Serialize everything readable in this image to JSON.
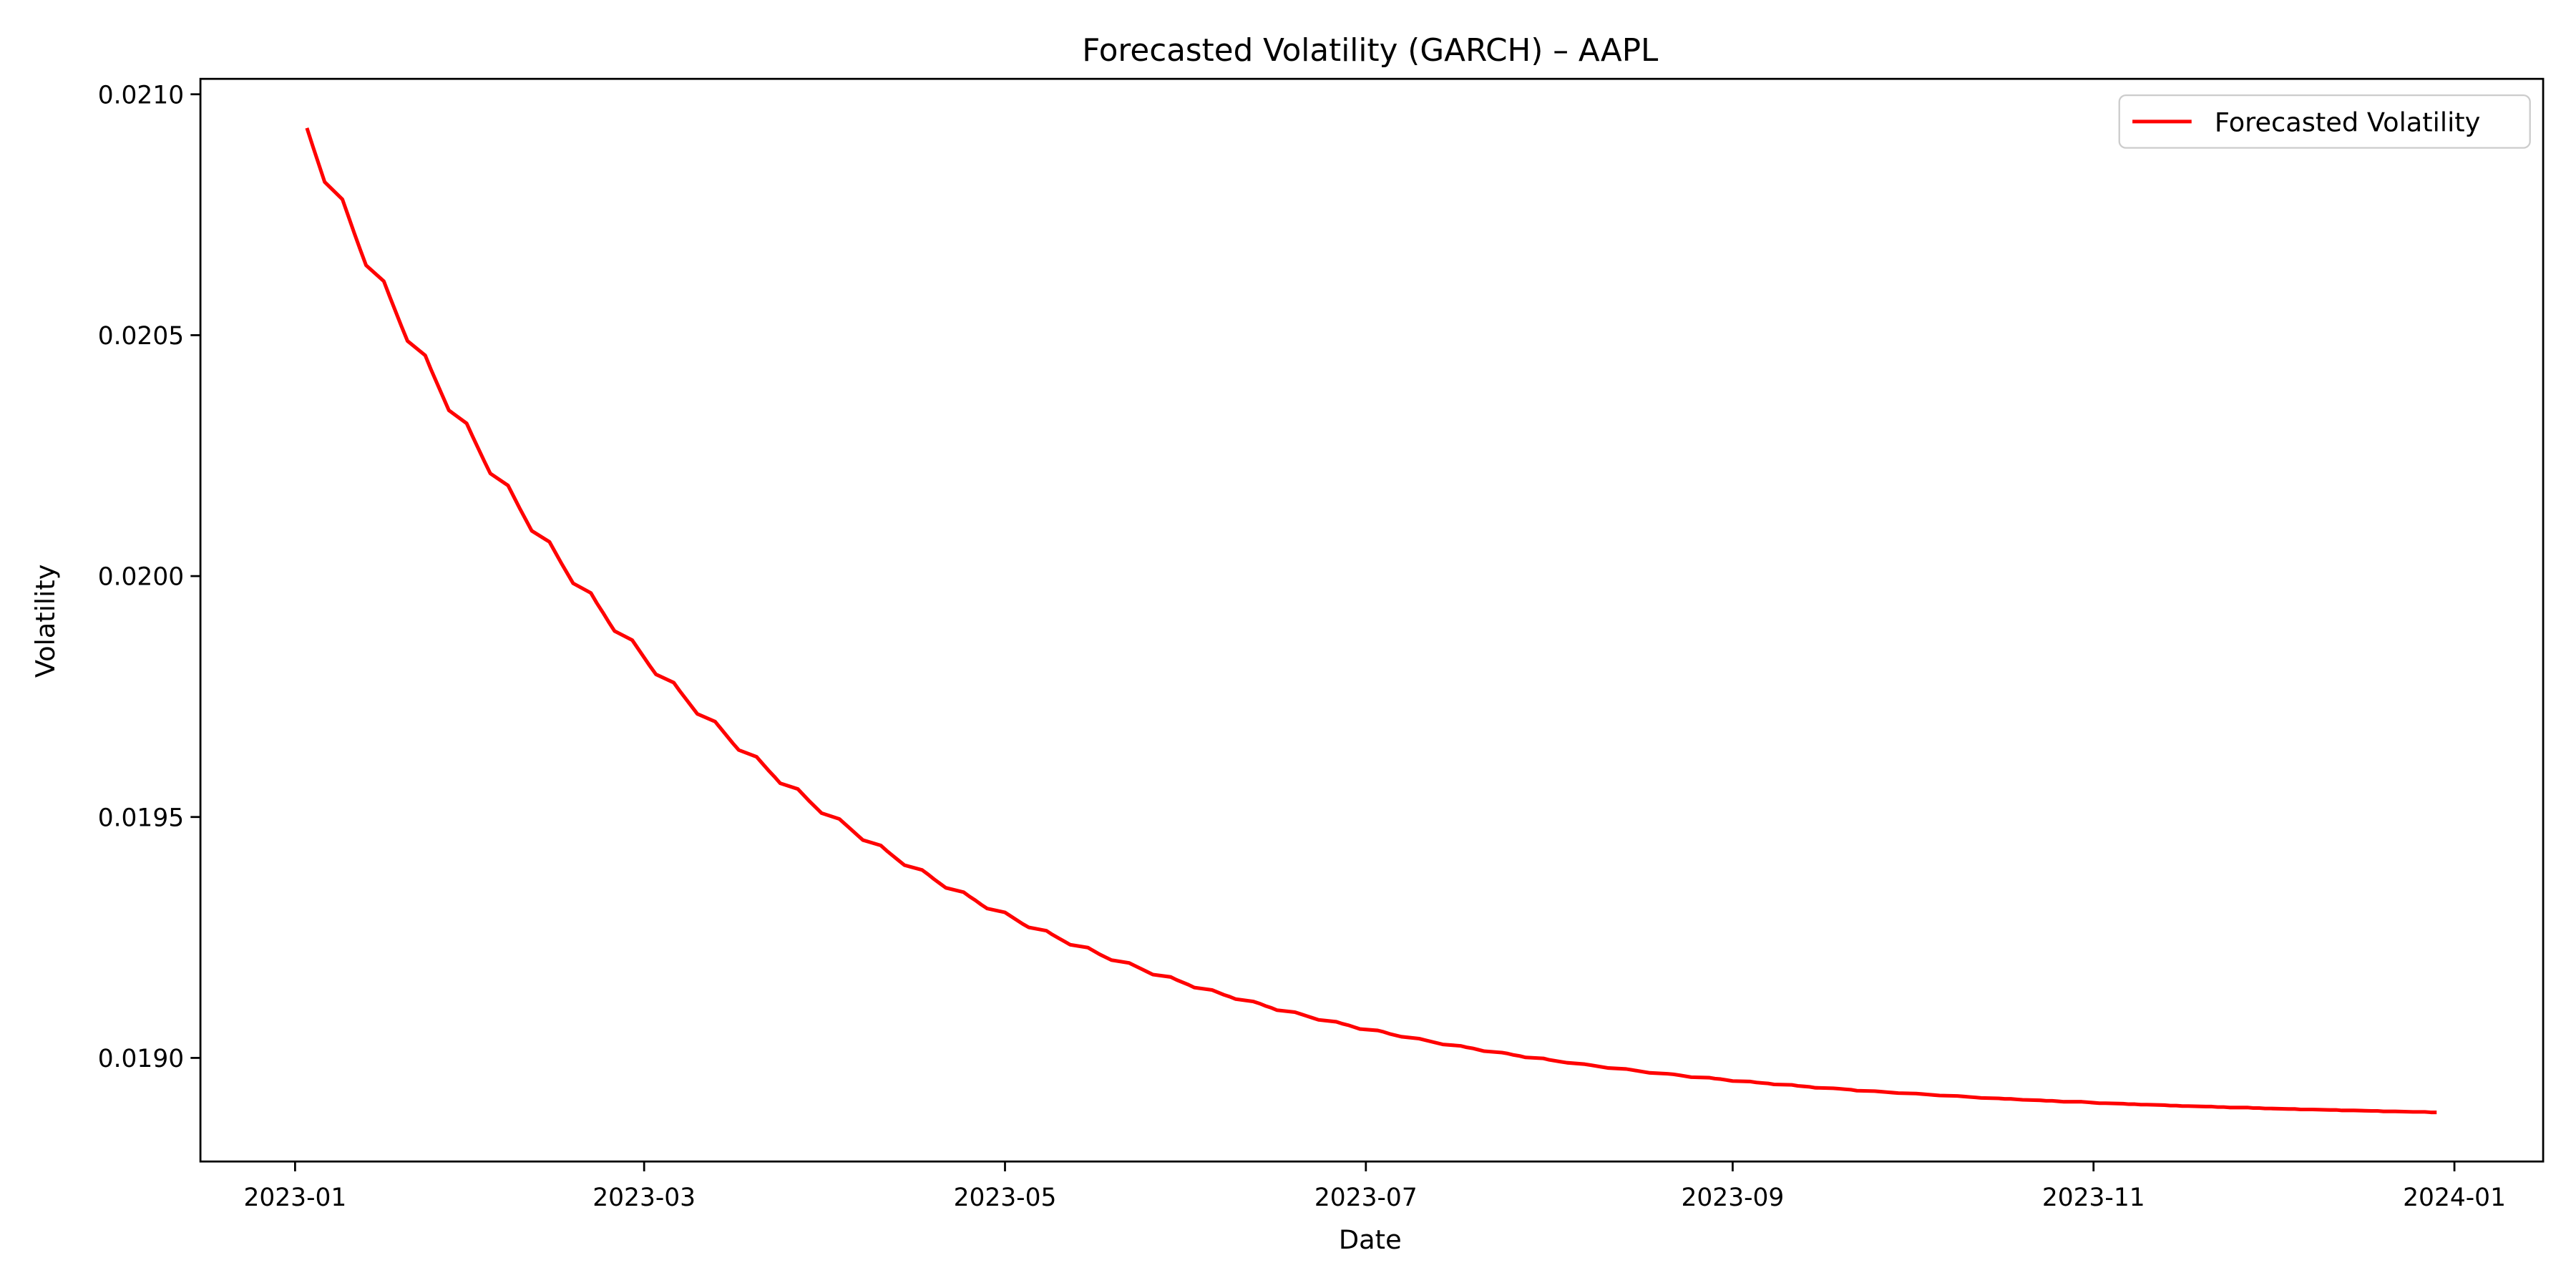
{
  "chart_data": {
    "type": "line",
    "title": "Forecasted Volatility (GARCH) – AAPL",
    "x_label": "Date",
    "y_label": "Volatility",
    "legend": "upper right",
    "grid": false,
    "x": [
      "2023-01-03",
      "2023-01-04",
      "2023-01-05",
      "2023-01-06",
      "2023-01-09",
      "2023-01-10",
      "2023-01-11",
      "2023-01-12",
      "2023-01-13",
      "2023-01-16",
      "2023-01-17",
      "2023-01-18",
      "2023-01-19",
      "2023-01-20",
      "2023-01-23",
      "2023-01-24",
      "2023-01-25",
      "2023-01-26",
      "2023-01-27",
      "2023-01-30",
      "2023-01-31",
      "2023-02-01",
      "2023-02-02",
      "2023-02-03",
      "2023-02-06",
      "2023-02-07",
      "2023-02-08",
      "2023-02-09",
      "2023-02-10",
      "2023-02-13",
      "2023-02-14",
      "2023-02-15",
      "2023-02-16",
      "2023-02-17",
      "2023-02-20",
      "2023-02-21",
      "2023-02-22",
      "2023-02-23",
      "2023-02-24",
      "2023-02-27",
      "2023-02-28",
      "2023-03-01",
      "2023-03-02",
      "2023-03-03",
      "2023-03-06",
      "2023-03-07",
      "2023-03-08",
      "2023-03-09",
      "2023-03-10",
      "2023-03-13",
      "2023-03-14",
      "2023-03-15",
      "2023-03-16",
      "2023-03-17",
      "2023-03-20",
      "2023-03-21",
      "2023-03-22",
      "2023-03-23",
      "2023-03-24",
      "2023-03-27",
      "2023-03-28",
      "2023-03-29",
      "2023-03-30",
      "2023-03-31",
      "2023-04-03",
      "2023-04-04",
      "2023-04-05",
      "2023-04-06",
      "2023-04-07",
      "2023-04-10",
      "2023-04-11",
      "2023-04-12",
      "2023-04-13",
      "2023-04-14",
      "2023-04-17",
      "2023-04-18",
      "2023-04-19",
      "2023-04-20",
      "2023-04-21",
      "2023-04-24",
      "2023-04-25",
      "2023-04-26",
      "2023-04-27",
      "2023-04-28",
      "2023-05-01",
      "2023-05-02",
      "2023-05-03",
      "2023-05-04",
      "2023-05-05",
      "2023-05-08",
      "2023-05-09",
      "2023-05-10",
      "2023-05-11",
      "2023-05-12",
      "2023-05-15",
      "2023-05-16",
      "2023-05-17",
      "2023-05-18",
      "2023-05-19",
      "2023-05-22",
      "2023-05-23",
      "2023-05-24",
      "2023-05-25",
      "2023-05-26",
      "2023-05-29",
      "2023-05-30",
      "2023-05-31",
      "2023-06-01",
      "2023-06-02",
      "2023-06-05",
      "2023-06-06",
      "2023-06-07",
      "2023-06-08",
      "2023-06-09",
      "2023-06-12",
      "2023-06-13",
      "2023-06-14",
      "2023-06-15",
      "2023-06-16",
      "2023-06-19",
      "2023-06-20",
      "2023-06-21",
      "2023-06-22",
      "2023-06-23",
      "2023-06-26",
      "2023-06-27",
      "2023-06-28",
      "2023-06-29",
      "2023-06-30",
      "2023-07-03",
      "2023-07-04",
      "2023-07-05",
      "2023-07-06",
      "2023-07-07",
      "2023-07-10",
      "2023-07-11",
      "2023-07-12",
      "2023-07-13",
      "2023-07-14",
      "2023-07-17",
      "2023-07-18",
      "2023-07-19",
      "2023-07-20",
      "2023-07-21",
      "2023-07-24",
      "2023-07-25",
      "2023-07-26",
      "2023-07-27",
      "2023-07-28",
      "2023-07-31",
      "2023-08-01",
      "2023-08-02",
      "2023-08-03",
      "2023-08-04",
      "2023-08-07",
      "2023-08-08",
      "2023-08-09",
      "2023-08-10",
      "2023-08-11",
      "2023-08-14",
      "2023-08-15",
      "2023-08-16",
      "2023-08-17",
      "2023-08-18",
      "2023-08-21",
      "2023-08-22",
      "2023-08-23",
      "2023-08-24",
      "2023-08-25",
      "2023-08-28",
      "2023-08-29",
      "2023-08-30",
      "2023-08-31",
      "2023-09-01",
      "2023-09-04",
      "2023-09-05",
      "2023-09-06",
      "2023-09-07",
      "2023-09-08",
      "2023-09-11",
      "2023-09-12",
      "2023-09-13",
      "2023-09-14",
      "2023-09-15",
      "2023-09-18",
      "2023-09-19",
      "2023-09-20",
      "2023-09-21",
      "2023-09-22",
      "2023-09-25",
      "2023-09-26",
      "2023-09-27",
      "2023-09-28",
      "2023-09-29",
      "2023-10-02",
      "2023-10-03",
      "2023-10-04",
      "2023-10-05",
      "2023-10-06",
      "2023-10-09",
      "2023-10-10",
      "2023-10-11",
      "2023-10-12",
      "2023-10-13",
      "2023-10-16",
      "2023-10-17",
      "2023-10-18",
      "2023-10-19",
      "2023-10-20",
      "2023-10-23",
      "2023-10-24",
      "2023-10-25",
      "2023-10-26",
      "2023-10-27",
      "2023-10-30",
      "2023-10-31",
      "2023-11-01",
      "2023-11-02",
      "2023-11-03",
      "2023-11-06",
      "2023-11-07",
      "2023-11-08",
      "2023-11-09",
      "2023-11-10",
      "2023-11-13",
      "2023-11-14",
      "2023-11-15",
      "2023-11-16",
      "2023-11-17",
      "2023-11-20",
      "2023-11-21",
      "2023-11-22",
      "2023-11-23",
      "2023-11-24",
      "2023-11-27",
      "2023-11-28",
      "2023-11-29",
      "2023-11-30",
      "2023-12-01",
      "2023-12-04",
      "2023-12-05",
      "2023-12-06",
      "2023-12-07",
      "2023-12-08",
      "2023-12-11",
      "2023-12-12",
      "2023-12-13",
      "2023-12-14",
      "2023-12-15",
      "2023-12-18",
      "2023-12-19",
      "2023-12-20",
      "2023-12-21",
      "2023-12-22",
      "2023-12-25",
      "2023-12-26",
      "2023-12-27",
      "2023-12-28",
      "2023-12-29"
    ],
    "series": [
      {
        "name": "Forecasted Volatility",
        "color": "#ff0000",
        "values": [
          0.02093,
          0.020892,
          0.020855,
          0.020818,
          0.020782,
          0.020747,
          0.020712,
          0.020678,
          0.020645,
          0.020612,
          0.02058,
          0.020549,
          0.020518,
          0.020488,
          0.020458,
          0.020428,
          0.0204,
          0.020372,
          0.020344,
          0.020317,
          0.02029,
          0.020264,
          0.020238,
          0.020213,
          0.020188,
          0.020164,
          0.02014,
          0.020117,
          0.020094,
          0.020071,
          0.020049,
          0.020027,
          0.020006,
          0.019985,
          0.019965,
          0.019944,
          0.019925,
          0.019905,
          0.019886,
          0.019867,
          0.019849,
          0.019831,
          0.019813,
          0.019796,
          0.019779,
          0.019762,
          0.019746,
          0.01973,
          0.019714,
          0.019698,
          0.019683,
          0.019668,
          0.019653,
          0.019639,
          0.019625,
          0.019611,
          0.019597,
          0.019584,
          0.01957,
          0.019558,
          0.019545,
          0.019532,
          0.01952,
          0.019508,
          0.019496,
          0.019485,
          0.019474,
          0.019463,
          0.019452,
          0.019441,
          0.01943,
          0.01942,
          0.01941,
          0.0194,
          0.01939,
          0.019381,
          0.019371,
          0.019362,
          0.019353,
          0.019344,
          0.019335,
          0.019327,
          0.019318,
          0.01931,
          0.019302,
          0.019294,
          0.019286,
          0.019278,
          0.019271,
          0.019264,
          0.019256,
          0.019249,
          0.019242,
          0.019235,
          0.019229,
          0.019222,
          0.019215,
          0.019209,
          0.019203,
          0.019197,
          0.019191,
          0.019185,
          0.019179,
          0.019173,
          0.019168,
          0.019162,
          0.019157,
          0.019152,
          0.019146,
          0.019141,
          0.019136,
          0.019131,
          0.019127,
          0.019122,
          0.019117,
          0.019113,
          0.019108,
          0.019104,
          0.019099,
          0.019095,
          0.019091,
          0.019087,
          0.019083,
          0.019079,
          0.019075,
          0.019071,
          0.019068,
          0.019064,
          0.01906,
          0.019057,
          0.019054,
          0.01905,
          0.019047,
          0.019044,
          0.01904,
          0.019037,
          0.019034,
          0.019031,
          0.019028,
          0.019025,
          0.019022,
          0.01902,
          0.019017,
          0.019014,
          0.019011,
          0.019009,
          0.019006,
          0.019004,
          0.019001,
          0.018999,
          0.018996,
          0.018994,
          0.018992,
          0.01899,
          0.018987,
          0.018985,
          0.018983,
          0.018981,
          0.018979,
          0.018977,
          0.018975,
          0.018973,
          0.018971,
          0.018969,
          0.018967,
          0.018966,
          0.018964,
          0.018962,
          0.01896,
          0.018959,
          0.018957,
          0.018956,
          0.018954,
          0.018952,
          0.018951,
          0.018949,
          0.018948,
          0.018947,
          0.018945,
          0.018944,
          0.018942,
          0.018941,
          0.01894,
          0.018938,
          0.018937,
          0.018936,
          0.018935,
          0.018934,
          0.018932,
          0.018931,
          0.01893,
          0.018929,
          0.018928,
          0.018927,
          0.018926,
          0.018925,
          0.018924,
          0.018923,
          0.018922,
          0.018921,
          0.01892,
          0.018919,
          0.018918,
          0.018917,
          0.018916,
          0.018915,
          0.018915,
          0.018914,
          0.018913,
          0.018912,
          0.018911,
          0.018911,
          0.01891,
          0.018909,
          0.018909,
          0.018908,
          0.018907,
          0.018906,
          0.018906,
          0.018905,
          0.018904,
          0.018904,
          0.018903,
          0.018903,
          0.018902,
          0.018901,
          0.018901,
          0.0189,
          0.0189,
          0.018899,
          0.018899,
          0.018898,
          0.018898,
          0.018897,
          0.018897,
          0.018896,
          0.018896,
          0.018895,
          0.018895,
          0.018894,
          0.018894,
          0.018893,
          0.018893,
          0.018893,
          0.018892,
          0.018892,
          0.018891,
          0.018891,
          0.018891,
          0.01889,
          0.01889,
          0.018889,
          0.018889,
          0.018889,
          0.018888,
          0.018888,
          0.018888,
          0.018887,
          0.018887
        ]
      }
    ],
    "xlim": [
      "2022-12-16",
      "2024-01-16"
    ],
    "xticks": [
      "2023-01",
      "2023-03",
      "2023-05",
      "2023-07",
      "2023-09",
      "2023-11",
      "2024-01"
    ],
    "ylim": [
      0.018785,
      0.021032
    ],
    "yticks": [
      {
        "value": 0.019,
        "label": "0.0190"
      },
      0.0195,
      {
        "value": 0.02,
        "label": "0.0200"
      },
      0.0205,
      {
        "value": 0.021,
        "label": "0.0210"
      }
    ]
  }
}
